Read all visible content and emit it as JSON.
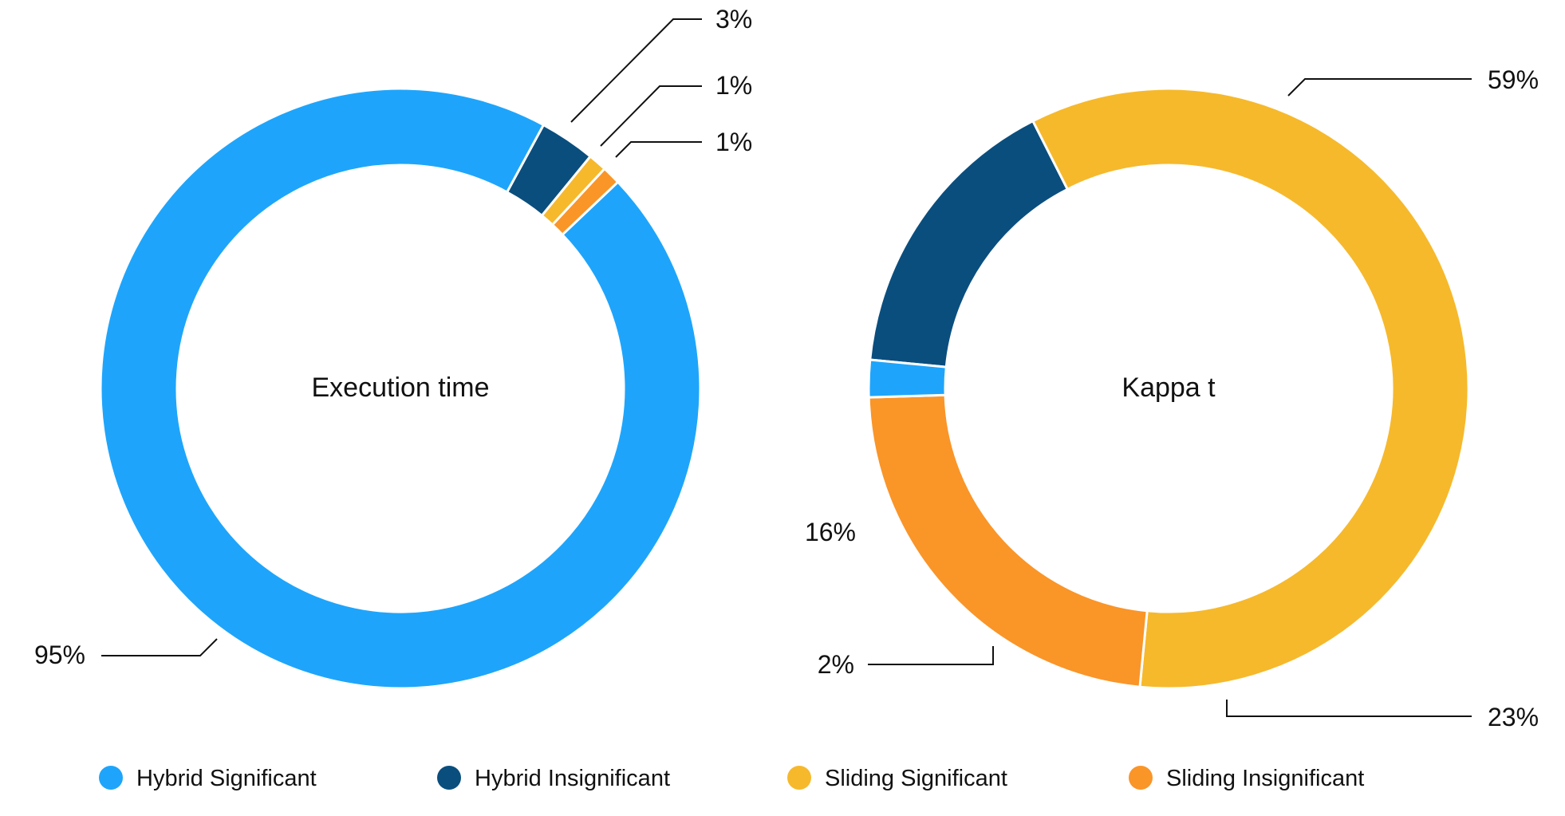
{
  "chart_data": [
    {
      "type": "pie",
      "variant": "donut",
      "title": "Execution time",
      "categories": [
        "Hybrid Significant",
        "Hybrid Insignificant",
        "Sliding Significant",
        "Sliding Insignificant"
      ],
      "values": [
        95,
        3,
        1,
        1
      ],
      "labels": [
        "95%",
        "3%",
        "1%",
        "1%"
      ]
    },
    {
      "type": "pie",
      "variant": "donut",
      "title": "Kappa t",
      "categories": [
        "Hybrid Significant",
        "Hybrid Insignificant",
        "Sliding Significant",
        "Sliding Insignificant"
      ],
      "values": [
        2,
        16,
        59,
        23
      ],
      "labels": [
        "2%",
        "16%",
        "59%",
        "23%"
      ]
    }
  ],
  "legend": {
    "placement": "bottom",
    "items": [
      {
        "label": "Hybrid Significant",
        "color": "#1EA5FB"
      },
      {
        "label": "Hybrid Insignificant",
        "color": "#0A4E7E"
      },
      {
        "label": "Sliding Significant",
        "color": "#F6B92C"
      },
      {
        "label": "Sliding Insignificant",
        "color": "#FA9528"
      }
    ]
  }
}
